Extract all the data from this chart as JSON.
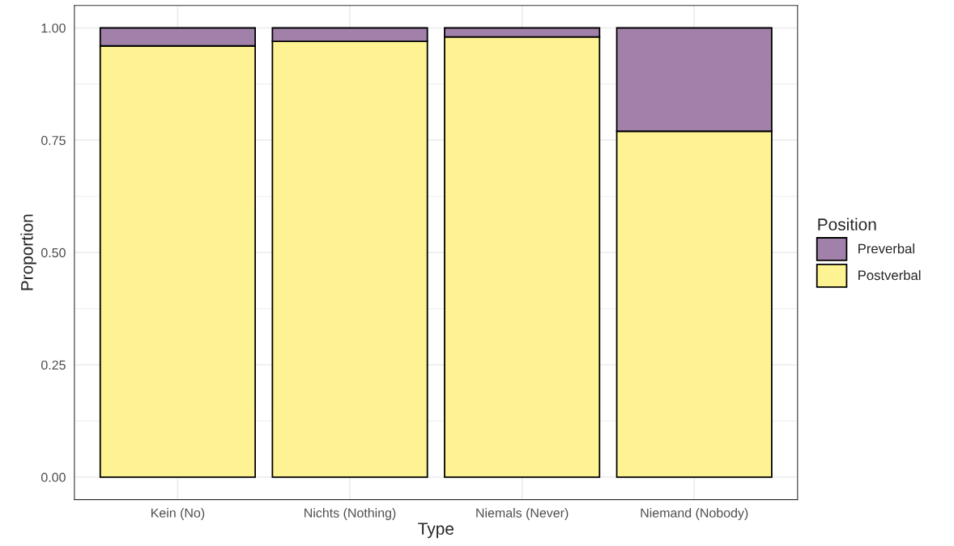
{
  "chart_data": {
    "type": "bar",
    "xlabel": "Type",
    "ylabel": "Proportion",
    "legend_title": "Position",
    "categories": [
      "Kein (No)",
      "Nichts (Nothing)",
      "Niemals (Never)",
      "Niemand (Nobody)"
    ],
    "stacked": true,
    "series": [
      {
        "name": "Postverbal",
        "color": "#fef392",
        "values": [
          0.96,
          0.97,
          0.98,
          0.77
        ]
      },
      {
        "name": "Preverbal",
        "color": "#a180a9",
        "values": [
          0.04,
          0.03,
          0.02,
          0.23
        ]
      }
    ],
    "ylim": [
      -0.05,
      1.05
    ],
    "yticks": [
      {
        "value": 0,
        "label": "0.00"
      },
      {
        "value": 0.25,
        "label": "0.25"
      },
      {
        "value": 0.5,
        "label": "0.50"
      },
      {
        "value": 0.75,
        "label": "0.75"
      },
      {
        "value": 1,
        "label": "1.00"
      }
    ],
    "grid": true,
    "legend": "right"
  }
}
